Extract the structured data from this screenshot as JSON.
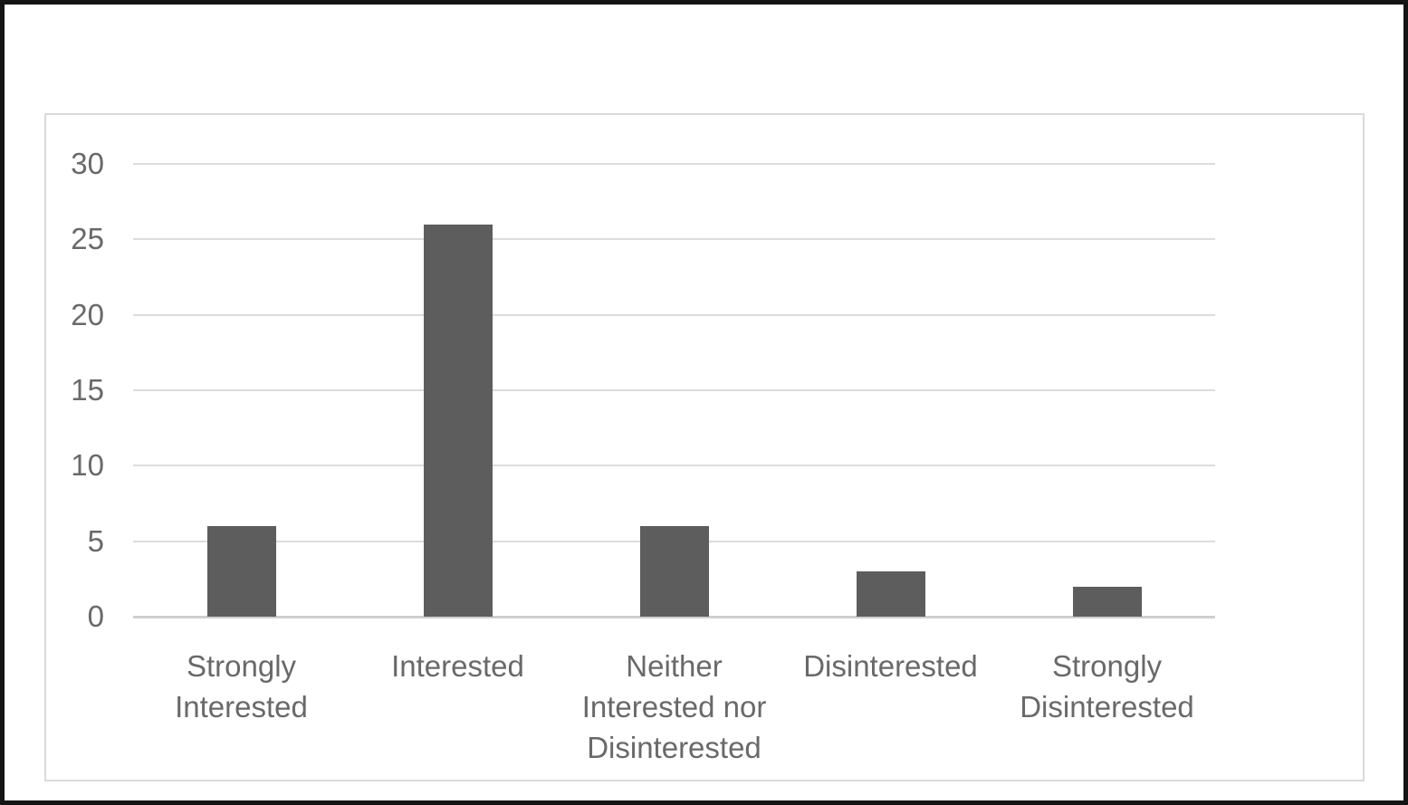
{
  "chart_data": {
    "type": "bar",
    "title": "",
    "categories": [
      "Strongly Interested",
      "Interested",
      "Neither Interested nor Disinterested",
      "Disinterested",
      "Strongly Disinterested"
    ],
    "values": [
      6,
      26,
      6,
      3,
      2
    ],
    "xlabel": "",
    "ylabel": "",
    "ylim": [
      0,
      30
    ],
    "ytick_step": 5,
    "ytick_labels": [
      "0",
      "5",
      "10",
      "15",
      "20",
      "25",
      "30"
    ],
    "grid": true,
    "legend": false,
    "colors": {
      "bar": "#5d5d5d",
      "gridline": "#dcdcdc",
      "axis_line": "#cfcfcf",
      "axis_text": "#696969",
      "chart_border": "#dadada",
      "outer_border": "#141414"
    }
  }
}
